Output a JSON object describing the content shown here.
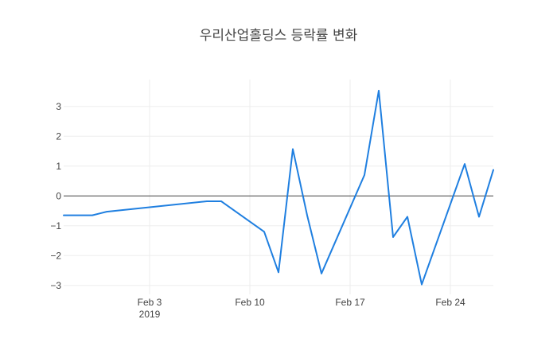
{
  "chart_data": {
    "type": "line",
    "title": "우리산업홀딩스 등락률 변화",
    "xlabel": "",
    "ylabel": "",
    "x_start": "2019-01-28",
    "x_end": "2019-02-27",
    "ylim": [
      -3.3,
      3.9
    ],
    "grid": true,
    "legend": "none",
    "x_ticks": [
      {
        "date": "2019-02-03",
        "label": "Feb 3",
        "sublabel": "2019"
      },
      {
        "date": "2019-02-10",
        "label": "Feb 10",
        "sublabel": ""
      },
      {
        "date": "2019-02-17",
        "label": "Feb 17",
        "sublabel": ""
      },
      {
        "date": "2019-02-24",
        "label": "Feb 24",
        "sublabel": ""
      }
    ],
    "y_ticks": [
      {
        "value": 3,
        "label": "3"
      },
      {
        "value": 2,
        "label": "2"
      },
      {
        "value": 1,
        "label": "1"
      },
      {
        "value": 0,
        "label": "0"
      },
      {
        "value": -1,
        "label": "−1"
      },
      {
        "value": -2,
        "label": "−2"
      },
      {
        "value": -3,
        "label": "−3"
      }
    ],
    "series": [
      {
        "color": "#1f7fe0",
        "x": [
          "2019-01-28",
          "2019-01-30",
          "2019-01-31",
          "2019-02-07",
          "2019-02-08",
          "2019-02-11",
          "2019-02-12",
          "2019-02-13",
          "2019-02-14",
          "2019-02-15",
          "2019-02-18",
          "2019-02-19",
          "2019-02-20",
          "2019-02-21",
          "2019-02-22",
          "2019-02-25",
          "2019-02-26",
          "2019-02-27"
        ],
        "y": [
          -0.65,
          -0.65,
          -0.53,
          -0.18,
          -0.18,
          -1.2,
          -2.56,
          1.57,
          -0.65,
          -2.6,
          0.7,
          3.53,
          -1.38,
          -0.7,
          -2.97,
          1.07,
          -0.7,
          0.87
        ]
      }
    ]
  }
}
